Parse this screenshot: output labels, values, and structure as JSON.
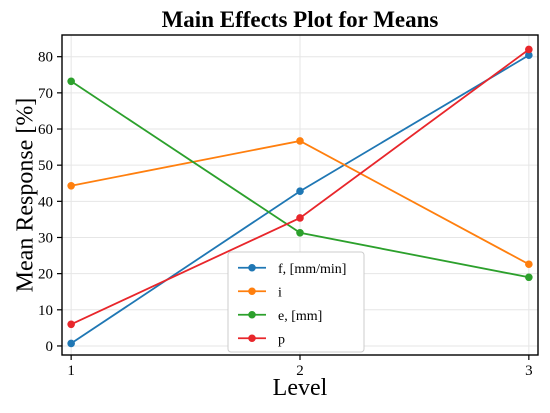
{
  "chart_data": {
    "type": "line",
    "title": "Main Effects Plot for Means",
    "xlabel": "Level",
    "ylabel": "Mean Response [%]",
    "x": [
      1,
      2,
      3
    ],
    "xticks": [
      "1",
      "2",
      "3"
    ],
    "yticks": [
      "0",
      "10",
      "20",
      "30",
      "40",
      "50",
      "60",
      "70",
      "80"
    ],
    "xlim": [
      0.96,
      3.04
    ],
    "ylim": [
      -2.5,
      86
    ],
    "grid": true,
    "legend_position": "lower-center",
    "series": [
      {
        "name": "f, [mm/min]",
        "values": [
          0.7,
          42.8,
          80.4
        ],
        "color": "#1f77b4"
      },
      {
        "name": "i",
        "values": [
          44.3,
          56.7,
          22.6
        ],
        "color": "#ff7f0e"
      },
      {
        "name": "e, [mm]",
        "values": [
          73.2,
          31.3,
          19.0
        ],
        "color": "#2ca02c"
      },
      {
        "name": "p",
        "values": [
          6.0,
          35.4,
          82.0
        ],
        "color": "#e8262b"
      }
    ]
  }
}
